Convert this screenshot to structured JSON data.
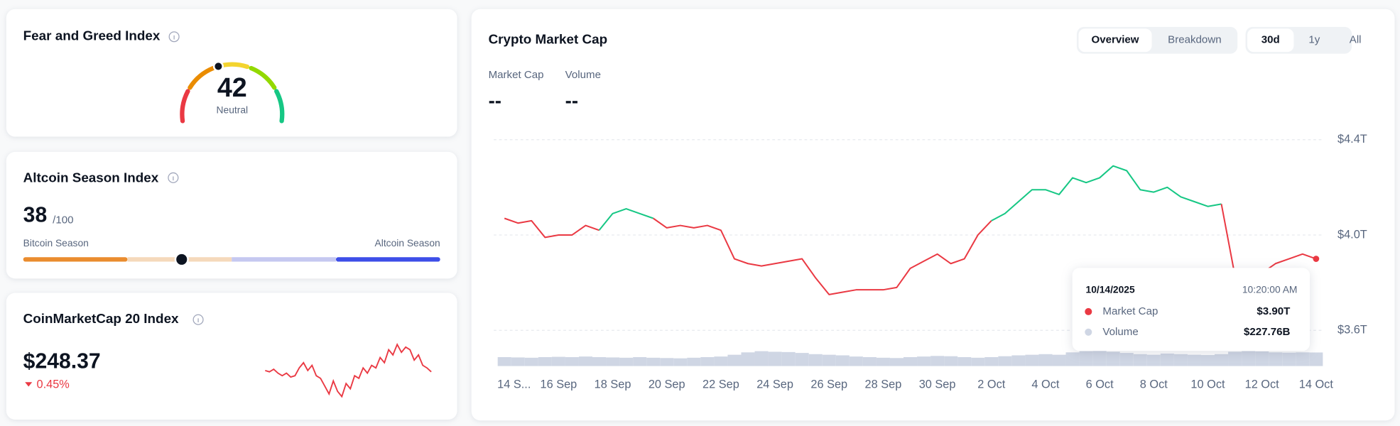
{
  "fear_greed": {
    "title": "Fear and Greed Index",
    "value": 42,
    "label": "Neutral",
    "range": [
      0,
      100
    ]
  },
  "altcoin_season": {
    "title": "Altcoin Season Index",
    "value": 38,
    "max_label": "/100",
    "left_label": "Bitcoin Season",
    "right_label": "Altcoin Season",
    "range": [
      0,
      100
    ]
  },
  "cmc20": {
    "title": "CoinMarketCap 20 Index",
    "price": "$248.37",
    "change": "0.45%",
    "direction": "down",
    "color": "#ea3943",
    "sparkline": {
      "ylim": [
        236,
        260
      ],
      "values": [
        248,
        247.5,
        248.5,
        247,
        246,
        247,
        245.5,
        246,
        249,
        251,
        248,
        250,
        246,
        245,
        242,
        239,
        244,
        240,
        238,
        243,
        241,
        246,
        245,
        249,
        247,
        250,
        249,
        253,
        251,
        256,
        254,
        258,
        255,
        257,
        256,
        252,
        254,
        250,
        249,
        247.5
      ]
    }
  },
  "market_cap": {
    "title": "Crypto Market Cap",
    "tabs": [
      "Overview",
      "Breakdown"
    ],
    "active_tab": 0,
    "ranges": [
      "30d",
      "1y",
      "All"
    ],
    "active_range": 0,
    "stats": [
      {
        "label": "Market Cap",
        "value": "--"
      },
      {
        "label": "Volume",
        "value": "--"
      }
    ],
    "tooltip": {
      "date": "10/14/2025",
      "time": "10:20:00 AM",
      "values": [
        "$3.90T",
        "$227.76B"
      ]
    }
  },
  "chart_data": {
    "type": "line",
    "x": [
      0,
      0.5,
      1,
      1.5,
      2,
      2.5,
      3,
      3.5,
      4,
      4.5,
      5,
      5.5,
      6,
      6.5,
      7,
      7.5,
      8,
      8.5,
      9,
      9.5,
      10,
      10.5,
      11,
      11.5,
      12,
      12.5,
      13,
      13.5,
      14,
      14.5,
      15,
      15.5,
      16,
      16.5,
      17,
      17.5,
      18,
      18.5,
      19,
      19.5,
      20,
      20.5,
      21,
      21.5,
      22,
      22.5,
      23,
      23.5,
      24,
      24.5,
      25,
      25.5,
      26,
      26.5,
      27,
      27.5,
      28,
      28.5,
      29,
      29.5,
      30
    ],
    "xlim": [
      0,
      30
    ],
    "xticks": [
      {
        "value": 0,
        "label": "14 S..."
      },
      {
        "value": 2,
        "label": "16 Sep"
      },
      {
        "value": 4,
        "label": "18 Sep"
      },
      {
        "value": 6,
        "label": "20 Sep"
      },
      {
        "value": 8,
        "label": "22 Sep"
      },
      {
        "value": 10,
        "label": "24 Sep"
      },
      {
        "value": 12,
        "label": "26 Sep"
      },
      {
        "value": 14,
        "label": "28 Sep"
      },
      {
        "value": 16,
        "label": "30 Sep"
      },
      {
        "value": 18,
        "label": "2 Oct"
      },
      {
        "value": 20,
        "label": "4 Oct"
      },
      {
        "value": 22,
        "label": "6 Oct"
      },
      {
        "value": 24,
        "label": "8 Oct"
      },
      {
        "value": 26,
        "label": "10 Oct"
      },
      {
        "value": 28,
        "label": "12 Oct"
      },
      {
        "value": 30,
        "label": "14 Oct"
      }
    ],
    "ylim": [
      3.45,
      4.45
    ],
    "yticks": [
      {
        "value": 4.4,
        "label": "$4.4T"
      },
      {
        "value": 4.0,
        "label": "$4.0T"
      },
      {
        "value": 3.6,
        "label": "$3.6T"
      }
    ],
    "y2lim": [
      0,
      4000
    ],
    "grid": true,
    "series": [
      {
        "name": "Market Cap",
        "colors": {
          "up": "#16c784",
          "down": "#ea3943"
        },
        "values": [
          4.07,
          4.05,
          4.06,
          3.99,
          4.0,
          4.0,
          4.04,
          4.02,
          4.09,
          4.11,
          4.09,
          4.07,
          4.03,
          4.04,
          4.03,
          4.04,
          4.02,
          3.9,
          3.88,
          3.87,
          3.88,
          3.89,
          3.9,
          3.82,
          3.75,
          3.76,
          3.77,
          3.77,
          3.77,
          3.78,
          3.86,
          3.89,
          3.92,
          3.88,
          3.9,
          4.0,
          4.06,
          4.09,
          4.14,
          4.19,
          4.19,
          4.17,
          4.24,
          4.22,
          4.24,
          4.29,
          4.27,
          4.19,
          4.18,
          4.2,
          4.16,
          4.14,
          4.12,
          4.13,
          3.83,
          3.82,
          3.84,
          3.88,
          3.9,
          3.92,
          3.9
        ]
      },
      {
        "name": "Volume",
        "color": "#cfd6e4",
        "axis": "y2",
        "values": [
          150,
          145,
          140,
          150,
          155,
          150,
          160,
          150,
          145,
          140,
          150,
          140,
          135,
          130,
          140,
          150,
          160,
          190,
          230,
          250,
          240,
          235,
          220,
          200,
          190,
          180,
          160,
          150,
          140,
          135,
          150,
          160,
          170,
          165,
          150,
          140,
          150,
          165,
          180,
          190,
          200,
          190,
          230,
          250,
          255,
          240,
          220,
          200,
          190,
          210,
          200,
          190,
          185,
          200,
          240,
          250,
          245,
          230,
          225,
          230,
          228
        ]
      }
    ]
  }
}
